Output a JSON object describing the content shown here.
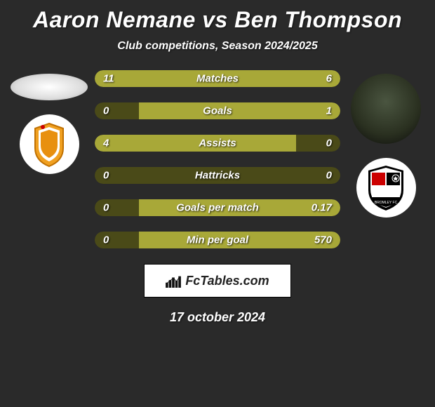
{
  "title": {
    "player1": "Aaron Nemane",
    "vs": "vs",
    "player2": "Ben Thompson"
  },
  "title_color": "#ffffff",
  "subtitle": "Club competitions, Season 2024/2025",
  "background_color": "#2a2a2a",
  "bar_colors": {
    "empty": "#4a4a18",
    "filled": "#a8a838"
  },
  "stats": [
    {
      "label": "Matches",
      "left_value": "11",
      "right_value": "6",
      "left_pct": 50,
      "right_pct": 50,
      "left_filled": true,
      "right_filled": true
    },
    {
      "label": "Goals",
      "left_value": "0",
      "right_value": "1",
      "left_pct": 18,
      "right_pct": 82,
      "left_filled": false,
      "right_filled": true
    },
    {
      "label": "Assists",
      "left_value": "4",
      "right_value": "0",
      "left_pct": 82,
      "right_pct": 18,
      "left_filled": true,
      "right_filled": false
    },
    {
      "label": "Hattricks",
      "left_value": "0",
      "right_value": "0",
      "left_pct": 50,
      "right_pct": 50,
      "left_filled": false,
      "right_filled": false
    },
    {
      "label": "Goals per match",
      "left_value": "0",
      "right_value": "0.17",
      "left_pct": 18,
      "right_pct": 82,
      "left_filled": false,
      "right_filled": true
    },
    {
      "label": "Min per goal",
      "left_value": "0",
      "right_value": "570",
      "left_pct": 18,
      "right_pct": 82,
      "left_filled": false,
      "right_filled": true
    }
  ],
  "attribution": "FcTables.com",
  "date": "17 october 2024"
}
